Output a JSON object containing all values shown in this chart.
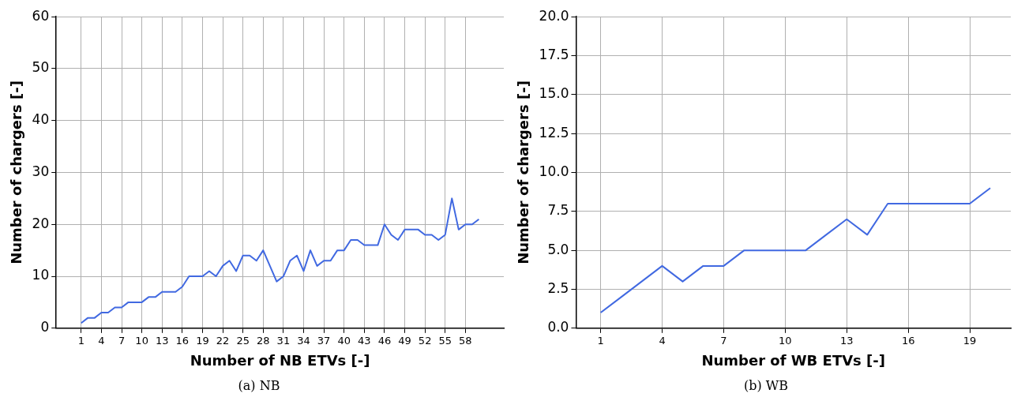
{
  "chart_data": [
    {
      "type": "line",
      "xlabel": "Number of NB ETVs [-]",
      "ylabel": "Number of chargers [-]",
      "annotations": [
        "(a) NB"
      ],
      "x": [
        1,
        2,
        3,
        4,
        5,
        6,
        7,
        8,
        9,
        10,
        11,
        12,
        13,
        14,
        15,
        16,
        17,
        18,
        19,
        20,
        21,
        22,
        23,
        24,
        25,
        26,
        27,
        28,
        29,
        30,
        31,
        32,
        33,
        34,
        35,
        36,
        37,
        38,
        39,
        40,
        41,
        42,
        43,
        44,
        45,
        46,
        47,
        48,
        49,
        50,
        51,
        52,
        53,
        54,
        55,
        56,
        57,
        58,
        59,
        60
      ],
      "series": [
        {
          "color": "#4169e1",
          "values": [
            1,
            2,
            2,
            3,
            3,
            4,
            4,
            5,
            5,
            5,
            6,
            6,
            7,
            7,
            7,
            8,
            10,
            10,
            10,
            11,
            10,
            12,
            13,
            11,
            14,
            14,
            13,
            15,
            12,
            9,
            10,
            13,
            14,
            11,
            15,
            12,
            13,
            13,
            15,
            15,
            17,
            17,
            16,
            16,
            16,
            20,
            18,
            17,
            19,
            19,
            19,
            18,
            18,
            17,
            18,
            25,
            19,
            20,
            20,
            21
          ]
        }
      ],
      "xlim": [
        -2.7,
        63.7
      ],
      "xticks": [
        1,
        4,
        7,
        10,
        13,
        16,
        19,
        22,
        25,
        28,
        31,
        34,
        37,
        40,
        43,
        46,
        49,
        52,
        55,
        58
      ],
      "ylim": [
        0,
        60
      ],
      "yticks": [
        0,
        10,
        20,
        30,
        40,
        50,
        60
      ],
      "grid": true,
      "legend": false,
      "marker": "none",
      "line_style": "solid"
    },
    {
      "type": "line",
      "xlabel": "Number of WB ETVs [-]",
      "ylabel": "Number of chargers [-]",
      "annotations": [
        "(b) WB"
      ],
      "x": [
        1,
        2,
        3,
        4,
        5,
        6,
        7,
        8,
        9,
        10,
        11,
        12,
        13,
        14,
        15,
        16,
        17,
        18,
        19,
        20
      ],
      "series": [
        {
          "color": "#4169e1",
          "values": [
            1,
            2,
            3,
            4,
            3,
            4,
            4,
            5,
            5,
            5,
            5,
            6,
            7,
            6,
            8,
            8,
            8,
            8,
            8,
            9
          ]
        }
      ],
      "xlim": [
        -0.2,
        21
      ],
      "xticks": [
        1,
        4,
        7,
        10,
        13,
        16,
        19
      ],
      "ylim": [
        0,
        20
      ],
      "yticks": [
        {
          "value": 0,
          "label": "0.0"
        },
        {
          "value": 2.5,
          "label": "2.5"
        },
        {
          "value": 5,
          "label": "5.0"
        },
        {
          "value": 7.5,
          "label": "7.5"
        },
        {
          "value": 10,
          "label": "10.0"
        },
        {
          "value": 12.5,
          "label": "12.5"
        },
        {
          "value": 15,
          "label": "15.0"
        },
        {
          "value": 17.5,
          "label": "17.5"
        },
        {
          "value": 20,
          "label": "20.0"
        }
      ],
      "grid": true,
      "legend": false,
      "marker": "none",
      "line_style": "solid"
    }
  ]
}
